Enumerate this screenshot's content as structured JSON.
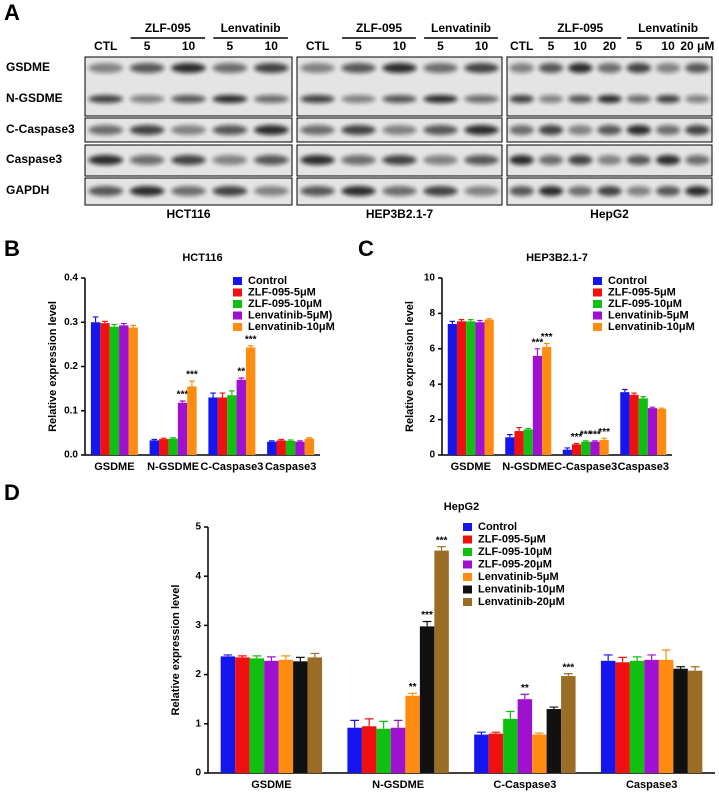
{
  "blot": {
    "panel": "A",
    "row_labels": [
      "GSDME",
      "N-GSDME",
      "C-Caspase3",
      "Caspase3",
      "GAPDH"
    ],
    "blocks": [
      {
        "name": "HCT116",
        "groups": [
          "ZLF-095",
          "Lenvatinib"
        ],
        "lanes": [
          "CTL",
          "5",
          "10",
          "5",
          "10"
        ]
      },
      {
        "name": "HEP3B2.1-7",
        "groups": [
          "ZLF-095",
          "Lenvatinib"
        ],
        "lanes": [
          "CTL",
          "5",
          "10",
          "5",
          "10"
        ]
      },
      {
        "name": "HepG2",
        "groups": [
          "ZLF-095",
          "Lenvatinib"
        ],
        "lanes": [
          "CTL",
          "5",
          "10",
          "20",
          "5",
          "10",
          "20 μM"
        ]
      }
    ]
  },
  "chart_data": [
    {
      "type": "bar",
      "panel": "B",
      "title": "HCT116",
      "y_label": "Relative expression level",
      "categories": [
        "GSDME",
        "N-GSDME",
        "C-Caspase3",
        "Caspase3"
      ],
      "ylim": [
        0,
        0.4
      ],
      "yticks": [
        {
          "value": 0,
          "label": "0.0"
        },
        0.1,
        0.2,
        0.3,
        0.4
      ],
      "series": [
        {
          "name": "Control",
          "color": "#1515f0",
          "values": [
            0.3,
            0.033,
            0.13,
            0.03
          ],
          "errors": [
            0.012,
            0.002,
            0.01,
            0.002
          ],
          "significance": [
            null,
            null,
            null,
            null
          ]
        },
        {
          "name": "ZLF-095-5μM",
          "color": "#f01010",
          "values": [
            0.298,
            0.036,
            0.13,
            0.033
          ],
          "errors": [
            0.004,
            0.002,
            0.01,
            0.002
          ],
          "significance": [
            null,
            null,
            null,
            null
          ]
        },
        {
          "name": "ZLF-095-10μM",
          "color": "#10c010",
          "values": [
            0.29,
            0.037,
            0.135,
            0.032
          ],
          "errors": [
            0.005,
            0.002,
            0.01,
            0.002
          ],
          "significance": [
            null,
            null,
            null,
            null
          ]
        },
        {
          "name": "Lenvatinib-5μM)",
          "color": "#a010d0",
          "values": [
            0.293,
            0.118,
            0.17,
            0.03
          ],
          "errors": [
            0.004,
            0.004,
            0.004,
            0.002
          ],
          "significance": [
            null,
            "***",
            "**",
            null
          ]
        },
        {
          "name": "Lenvatinib-10μM",
          "color": "#ff8c10",
          "values": [
            0.288,
            0.155,
            0.243,
            0.037
          ],
          "errors": [
            0.005,
            0.012,
            0.004,
            0.002
          ],
          "significance": [
            null,
            "***",
            "***",
            null
          ]
        }
      ]
    },
    {
      "type": "bar",
      "panel": "C",
      "title": "HEP3B2.1-7",
      "y_label": "Relative expression level",
      "categories": [
        "GSDME",
        "N-GSDME",
        "C-Caspase3",
        "Caspase3"
      ],
      "ylim": [
        0,
        10
      ],
      "yticks": [
        0,
        2,
        4,
        6,
        8,
        10
      ],
      "series": [
        {
          "name": "Control",
          "color": "#1515f0",
          "values": [
            7.4,
            1.0,
            0.3,
            3.55
          ],
          "errors": [
            0.15,
            0.15,
            0.1,
            0.15
          ],
          "significance": [
            null,
            null,
            null,
            null
          ]
        },
        {
          "name": "ZLF-095-5μM",
          "color": "#f01010",
          "values": [
            7.55,
            1.35,
            0.6,
            3.4
          ],
          "errors": [
            0.1,
            0.2,
            0.05,
            0.1
          ],
          "significance": [
            null,
            null,
            "***",
            null
          ]
        },
        {
          "name": "ZLF-095-10μM",
          "color": "#10c010",
          "values": [
            7.55,
            1.45,
            0.75,
            3.2
          ],
          "errors": [
            0.1,
            0.05,
            0.05,
            0.1
          ],
          "significance": [
            null,
            null,
            "***",
            null
          ]
        },
        {
          "name": "Lenvatinib-5μM",
          "color": "#a010d0",
          "values": [
            7.5,
            5.6,
            0.75,
            2.65
          ],
          "errors": [
            0.1,
            0.4,
            0.05,
            0.05
          ],
          "significance": [
            null,
            "***",
            "***",
            null
          ]
        },
        {
          "name": "Lenvatinib-10μM",
          "color": "#ff8c10",
          "values": [
            7.65,
            6.1,
            0.85,
            2.6
          ],
          "errors": [
            0.05,
            0.2,
            0.1,
            0.05
          ],
          "significance": [
            null,
            "***",
            "***",
            null
          ]
        }
      ]
    },
    {
      "type": "bar",
      "panel": "D",
      "title": "HepG2",
      "y_label": "Relative expression level",
      "categories": [
        "GSDME",
        "N-GSDME",
        "C-Caspase3",
        "Caspase3"
      ],
      "ylim": [
        0,
        5
      ],
      "yticks": [
        0,
        1,
        2,
        3,
        4,
        5
      ],
      "series": [
        {
          "name": "Control",
          "color": "#1515f0",
          "values": [
            2.37,
            0.92,
            0.78,
            2.28
          ],
          "errors": [
            0.03,
            0.15,
            0.05,
            0.12
          ],
          "significance": [
            null,
            null,
            null,
            null
          ]
        },
        {
          "name": "ZLF-095-5μM",
          "color": "#f01010",
          "values": [
            2.35,
            0.95,
            0.8,
            2.25
          ],
          "errors": [
            0.03,
            0.15,
            0.03,
            0.1
          ],
          "significance": [
            null,
            null,
            null,
            null
          ]
        },
        {
          "name": "ZLF-095-10μM",
          "color": "#10c010",
          "values": [
            2.33,
            0.9,
            1.1,
            2.28
          ],
          "errors": [
            0.05,
            0.15,
            0.15,
            0.08
          ],
          "significance": [
            null,
            null,
            null,
            null
          ]
        },
        {
          "name": "ZLF-095-20μM",
          "color": "#a010d0",
          "values": [
            2.28,
            0.92,
            1.5,
            2.3
          ],
          "errors": [
            0.08,
            0.15,
            0.1,
            0.1
          ],
          "significance": [
            null,
            null,
            "**",
            null
          ]
        },
        {
          "name": "Lenvatinib-5μM",
          "color": "#ff8c10",
          "values": [
            2.3,
            1.57,
            0.78,
            2.3
          ],
          "errors": [
            0.08,
            0.05,
            0.03,
            0.2
          ],
          "significance": [
            null,
            "**",
            null,
            null
          ]
        },
        {
          "name": "Lenvatinib-10μM",
          "color": "#111111",
          "values": [
            2.27,
            2.98,
            1.3,
            2.12
          ],
          "errors": [
            0.08,
            0.1,
            0.04,
            0.04
          ],
          "significance": [
            null,
            "***",
            null,
            null
          ]
        },
        {
          "name": "Lenvatinib-20μM",
          "color": "#9b6c25",
          "values": [
            2.35,
            4.52,
            1.97,
            2.08
          ],
          "errors": [
            0.08,
            0.08,
            0.05,
            0.08
          ],
          "significance": [
            null,
            "***",
            "***",
            null
          ]
        }
      ]
    }
  ]
}
